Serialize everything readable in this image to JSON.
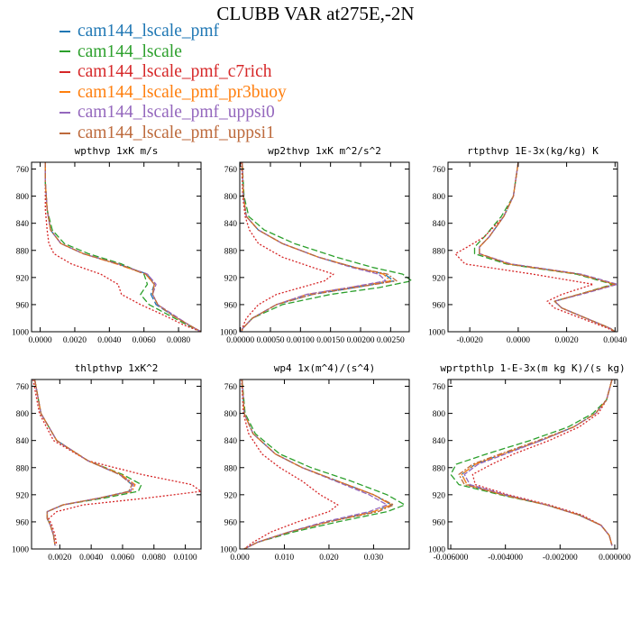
{
  "title": "CLUBB VAR at275E,-2N",
  "legend": [
    {
      "label": "cam144_lscale_pmf",
      "color": "#1f77b4"
    },
    {
      "label": "cam144_lscale",
      "color": "#2ca02c"
    },
    {
      "label": "cam144_lscale_pmf_c7rich",
      "color": "#d62728"
    },
    {
      "label": "cam144_lscale_pmf_pr3buoy",
      "color": "#ff7f0e"
    },
    {
      "label": "cam144_lscale_pmf_uppsi0",
      "color": "#9467bd"
    },
    {
      "label": "cam144_lscale_pmf_uppsi1",
      "color": "#bd6a3c"
    }
  ],
  "chart_data": [
    {
      "type": "line",
      "title": "wpthvp  1xK m/s",
      "ylim": [
        1000,
        750
      ],
      "xlim": [
        -0.0005,
        0.0093
      ],
      "yticks": [
        760,
        800,
        840,
        880,
        920,
        960,
        1000
      ],
      "xticks": [
        {
          "v": 0,
          "l": "0.0000"
        },
        {
          "v": 0.002,
          "l": "0.0020"
        },
        {
          "v": 0.004,
          "l": "0.0040"
        },
        {
          "v": 0.006,
          "l": "0.0060"
        },
        {
          "v": 0.008,
          "l": "0.0080"
        }
      ],
      "y": [
        750,
        780,
        820,
        850,
        870,
        885,
        900,
        915,
        930,
        945,
        960,
        975,
        990,
        1000
      ],
      "series": [
        {
          "values": [
            0.0003,
            0.0003,
            0.0004,
            0.0006,
            0.0012,
            0.0025,
            0.0045,
            0.0062,
            0.0066,
            0.0064,
            0.0067,
            0.0076,
            0.0086,
            0.0093
          ]
        },
        {
          "values": [
            0.0003,
            0.0003,
            0.0004,
            0.0007,
            0.0014,
            0.0028,
            0.0047,
            0.006,
            0.0062,
            0.0058,
            0.0063,
            0.0074,
            0.0085,
            0.0093
          ]
        },
        {
          "values": [
            0.0003,
            0.0003,
            0.0003,
            0.0004,
            0.0005,
            0.0008,
            0.0018,
            0.0035,
            0.0045,
            0.0047,
            0.0058,
            0.0071,
            0.0083,
            0.0093
          ]
        },
        {
          "values": [
            0.0003,
            0.0003,
            0.0004,
            0.0006,
            0.0012,
            0.0025,
            0.0044,
            0.0061,
            0.0066,
            0.0065,
            0.0068,
            0.0076,
            0.0086,
            0.0093
          ]
        },
        {
          "values": [
            0.0003,
            0.0003,
            0.0004,
            0.0006,
            0.0012,
            0.0025,
            0.0045,
            0.0062,
            0.0067,
            0.0065,
            0.0068,
            0.0077,
            0.0086,
            0.0093
          ]
        },
        {
          "values": [
            0.0003,
            0.0003,
            0.0004,
            0.0006,
            0.0012,
            0.0025,
            0.0045,
            0.0061,
            0.0066,
            0.0065,
            0.0068,
            0.0076,
            0.0086,
            0.0093
          ]
        }
      ]
    },
    {
      "type": "line",
      "title": "wp2thvp  1xK m^2/s^2",
      "ylim": [
        1000,
        750
      ],
      "xlim": [
        -1e-05,
        0.00281
      ],
      "yticks": [
        760,
        800,
        840,
        880,
        920,
        960,
        1000
      ],
      "xticks": [
        {
          "v": 0,
          "l": "0.00000"
        },
        {
          "v": 0.0005,
          "l": "0.00050"
        },
        {
          "v": 0.001,
          "l": "0.00100"
        },
        {
          "v": 0.0015,
          "l": "0.00150"
        },
        {
          "v": 0.002,
          "l": "0.00200"
        },
        {
          "v": 0.0025,
          "l": "0.00250"
        }
      ],
      "y": [
        750,
        800,
        830,
        850,
        870,
        890,
        905,
        915,
        925,
        935,
        945,
        960,
        980,
        995,
        1000
      ],
      "series": [
        {
          "values": [
            3e-05,
            5e-05,
            0.0001,
            0.0003,
            0.0007,
            0.0013,
            0.0019,
            0.0024,
            0.00255,
            0.0019,
            0.0012,
            0.0006,
            0.0002,
            4e-05,
            2e-05
          ]
        },
        {
          "values": [
            3e-05,
            6e-05,
            0.00014,
            0.0004,
            0.0009,
            0.0016,
            0.0022,
            0.0027,
            0.00285,
            0.0023,
            0.0015,
            0.0007,
            0.0002,
            4e-05,
            2e-05
          ]
        },
        {
          "values": [
            2e-05,
            4e-05,
            8e-05,
            0.00015,
            0.0003,
            0.0007,
            0.0012,
            0.00155,
            0.0014,
            0.001,
            0.0006,
            0.0003,
            0.0001,
            3e-05,
            2e-05
          ]
        },
        {
          "values": [
            3e-05,
            5e-05,
            0.0001,
            0.0003,
            0.0007,
            0.0013,
            0.0019,
            0.00238,
            0.0025,
            0.0018,
            0.0011,
            0.0006,
            0.0002,
            4e-05,
            2e-05
          ]
        },
        {
          "values": [
            3e-05,
            5e-05,
            0.0001,
            0.0003,
            0.0007,
            0.0013,
            0.00185,
            0.0023,
            0.00242,
            0.0018,
            0.0011,
            0.0006,
            0.0002,
            4e-05,
            2e-05
          ]
        },
        {
          "values": [
            3e-05,
            5e-05,
            0.0001,
            0.0003,
            0.0007,
            0.0013,
            0.0019,
            0.00245,
            0.0026,
            0.0019,
            0.0012,
            0.0006,
            0.0002,
            4e-05,
            2e-05
          ]
        }
      ]
    },
    {
      "type": "line",
      "title": "rtpthvp  1E-3x(kg/kg) K",
      "ylim": [
        1000,
        750
      ],
      "xlim": [
        -0.0029,
        0.0041
      ],
      "yticks": [
        760,
        800,
        840,
        880,
        920,
        960,
        1000
      ],
      "xticks": [
        {
          "v": -0.002,
          "l": "-0.0020"
        },
        {
          "v": 0,
          "l": "0.0000"
        },
        {
          "v": 0.002,
          "l": "0.0020"
        },
        {
          "v": 0.004,
          "l": "0.0040"
        }
      ],
      "y": [
        750,
        800,
        830,
        860,
        875,
        885,
        900,
        915,
        930,
        945,
        955,
        965,
        980,
        995,
        1000
      ],
      "series": [
        {
          "values": [
            0,
            -0.0002,
            -0.0006,
            -0.0012,
            -0.0016,
            -0.0016,
            -0.0004,
            0.0025,
            0.004,
            0.0025,
            0.0015,
            0.0018,
            0.0028,
            0.0038,
            0.004
          ]
        },
        {
          "values": [
            0,
            -0.0002,
            -0.0007,
            -0.0014,
            -0.0018,
            -0.0018,
            -0.0005,
            0.0024,
            0.0039,
            0.0025,
            0.0015,
            0.0018,
            0.0028,
            0.0038,
            0.004
          ]
        },
        {
          "values": [
            0,
            -0.0002,
            -0.0006,
            -0.0014,
            -0.0021,
            -0.0026,
            -0.0022,
            0.0006,
            0.0031,
            0.0018,
            0.0012,
            0.0015,
            0.0026,
            0.0037,
            0.004
          ]
        },
        {
          "values": [
            0,
            -0.0002,
            -0.0006,
            -0.0012,
            -0.0016,
            -0.0016,
            -0.0004,
            0.0025,
            0.004,
            0.0025,
            0.0015,
            0.0018,
            0.0028,
            0.0038,
            0.004
          ]
        },
        {
          "values": [
            0,
            -0.0002,
            -0.0006,
            -0.0012,
            -0.0016,
            -0.0016,
            -0.0003,
            0.0026,
            0.0041,
            0.0026,
            0.0015,
            0.0018,
            0.0028,
            0.0038,
            0.004
          ]
        },
        {
          "values": [
            0,
            -0.0002,
            -0.0006,
            -0.0012,
            -0.0016,
            -0.0016,
            -0.0004,
            0.0025,
            0.004,
            0.0025,
            0.0015,
            0.0018,
            0.0028,
            0.0038,
            0.004
          ]
        }
      ]
    },
    {
      "type": "line",
      "title": "thlpthvp  1xK^2",
      "ylim": [
        1000,
        750
      ],
      "xlim": [
        0.0002,
        0.011
      ],
      "yticks": [
        760,
        800,
        840,
        880,
        920,
        960,
        1000
      ],
      "xticks": [
        {
          "v": 0.002,
          "l": "0.0020"
        },
        {
          "v": 0.004,
          "l": "0.0040"
        },
        {
          "v": 0.006,
          "l": "0.0060"
        },
        {
          "v": 0.008,
          "l": "0.0080"
        },
        {
          "v": 0.01,
          "l": "0.0100"
        }
      ],
      "y": [
        750,
        800,
        840,
        870,
        890,
        905,
        915,
        925,
        935,
        945,
        955,
        965,
        980,
        995
      ],
      "series": [
        {
          "values": [
            0.0004,
            0.0008,
            0.0018,
            0.0038,
            0.0058,
            0.0066,
            0.0064,
            0.0045,
            0.0022,
            0.0012,
            0.0012,
            0.0014,
            0.0016,
            0.0017
          ]
        },
        {
          "values": [
            0.0004,
            0.0008,
            0.0018,
            0.0038,
            0.006,
            0.0072,
            0.007,
            0.0048,
            0.0022,
            0.0012,
            0.0012,
            0.0014,
            0.0016,
            0.0017
          ]
        },
        {
          "values": [
            0.0003,
            0.0007,
            0.0016,
            0.0038,
            0.0072,
            0.0104,
            0.011,
            0.0075,
            0.0035,
            0.0018,
            0.0013,
            0.0015,
            0.0017,
            0.0018
          ]
        },
        {
          "values": [
            0.0004,
            0.0008,
            0.0018,
            0.0038,
            0.0059,
            0.0068,
            0.0066,
            0.0045,
            0.0022,
            0.0012,
            0.0012,
            0.0014,
            0.0016,
            0.0017
          ]
        },
        {
          "values": [
            0.0004,
            0.0008,
            0.0018,
            0.0038,
            0.0058,
            0.0067,
            0.0065,
            0.0045,
            0.0022,
            0.0012,
            0.0012,
            0.0014,
            0.0016,
            0.0017
          ]
        },
        {
          "values": [
            0.0004,
            0.0008,
            0.0018,
            0.0038,
            0.0058,
            0.0066,
            0.0064,
            0.0045,
            0.0022,
            0.0012,
            0.0012,
            0.0014,
            0.0016,
            0.0017
          ]
        }
      ]
    },
    {
      "type": "line",
      "title": "wp4  1x(m^4)/(s^4)",
      "ylim": [
        1000,
        750
      ],
      "xlim": [
        0,
        0.038
      ],
      "yticks": [
        760,
        800,
        840,
        880,
        920,
        960,
        1000
      ],
      "xticks": [
        {
          "v": 0,
          "l": "0.000"
        },
        {
          "v": 0.01,
          "l": "0.010"
        },
        {
          "v": 0.02,
          "l": "0.020"
        },
        {
          "v": 0.03,
          "l": "0.030"
        }
      ],
      "y": [
        750,
        800,
        830,
        860,
        880,
        900,
        920,
        935,
        945,
        960,
        975,
        990,
        1000
      ],
      "series": [
        {
          "values": [
            0.0005,
            0.001,
            0.003,
            0.008,
            0.014,
            0.022,
            0.03,
            0.034,
            0.03,
            0.02,
            0.011,
            0.004,
            0.001
          ]
        },
        {
          "values": [
            0.0005,
            0.0012,
            0.0035,
            0.009,
            0.016,
            0.025,
            0.033,
            0.037,
            0.033,
            0.022,
            0.012,
            0.004,
            0.001
          ]
        },
        {
          "values": [
            0.0004,
            0.0008,
            0.002,
            0.005,
            0.009,
            0.014,
            0.018,
            0.022,
            0.02,
            0.013,
            0.007,
            0.003,
            0.001
          ]
        },
        {
          "values": [
            0.0005,
            0.001,
            0.003,
            0.008,
            0.014,
            0.022,
            0.03,
            0.034,
            0.03,
            0.02,
            0.011,
            0.004,
            0.001
          ]
        },
        {
          "values": [
            0.0005,
            0.001,
            0.003,
            0.008,
            0.014,
            0.0215,
            0.029,
            0.033,
            0.029,
            0.019,
            0.011,
            0.004,
            0.001
          ]
        },
        {
          "values": [
            0.0005,
            0.001,
            0.003,
            0.008,
            0.014,
            0.022,
            0.03,
            0.0345,
            0.031,
            0.02,
            0.011,
            0.004,
            0.001
          ]
        }
      ]
    },
    {
      "type": "line",
      "title": "wprtpthlp  1-E-3x(m kg K)/(s kg)",
      "ylim": [
        1000,
        750
      ],
      "xlim": [
        -0.0061,
        0.0001
      ],
      "yticks": [
        760,
        800,
        840,
        880,
        920,
        960,
        1000
      ],
      "xticks": [
        {
          "v": -0.006,
          "l": "-0.006000"
        },
        {
          "v": -0.004,
          "l": "-0.004000"
        },
        {
          "v": -0.002,
          "l": "-0.002000"
        },
        {
          "v": 0,
          "l": "0.000000"
        }
      ],
      "y": [
        750,
        780,
        800,
        820,
        840,
        860,
        875,
        890,
        905,
        920,
        935,
        950,
        965,
        980,
        995
      ],
      "series": [
        {
          "values": [
            -0.0001,
            -0.0003,
            -0.0007,
            -0.0015,
            -0.0027,
            -0.0041,
            -0.0051,
            -0.0056,
            -0.0054,
            -0.0041,
            -0.0025,
            -0.0013,
            -0.0005,
            -0.0002,
            -0.0001
          ]
        },
        {
          "values": [
            -0.0001,
            -0.0003,
            -0.0008,
            -0.0017,
            -0.0031,
            -0.0047,
            -0.0058,
            -0.006,
            -0.0057,
            -0.0042,
            -0.0025,
            -0.0013,
            -0.0005,
            -0.0002,
            -0.0001
          ]
        },
        {
          "values": [
            -0.0001,
            -0.0003,
            -0.0006,
            -0.0013,
            -0.0024,
            -0.0037,
            -0.0045,
            -0.0052,
            -0.0051,
            -0.0039,
            -0.0024,
            -0.0012,
            -0.0005,
            -0.0002,
            -0.0001
          ]
        },
        {
          "values": [
            -0.0001,
            -0.0003,
            -0.0007,
            -0.0015,
            -0.0027,
            -0.0041,
            -0.0051,
            -0.0056,
            -0.0054,
            -0.0041,
            -0.0025,
            -0.0013,
            -0.0005,
            -0.0002,
            -0.0001
          ]
        },
        {
          "values": [
            -0.0001,
            -0.0003,
            -0.0007,
            -0.0015,
            -0.0027,
            -0.004,
            -0.005,
            -0.0055,
            -0.0053,
            -0.004,
            -0.0025,
            -0.0013,
            -0.0005,
            -0.0002,
            -0.0001
          ]
        },
        {
          "values": [
            -0.0001,
            -0.0003,
            -0.0007,
            -0.0015,
            -0.0028,
            -0.0042,
            -0.0052,
            -0.0057,
            -0.0055,
            -0.0041,
            -0.0025,
            -0.0013,
            -0.0005,
            -0.0002,
            -0.0001
          ]
        }
      ]
    }
  ]
}
